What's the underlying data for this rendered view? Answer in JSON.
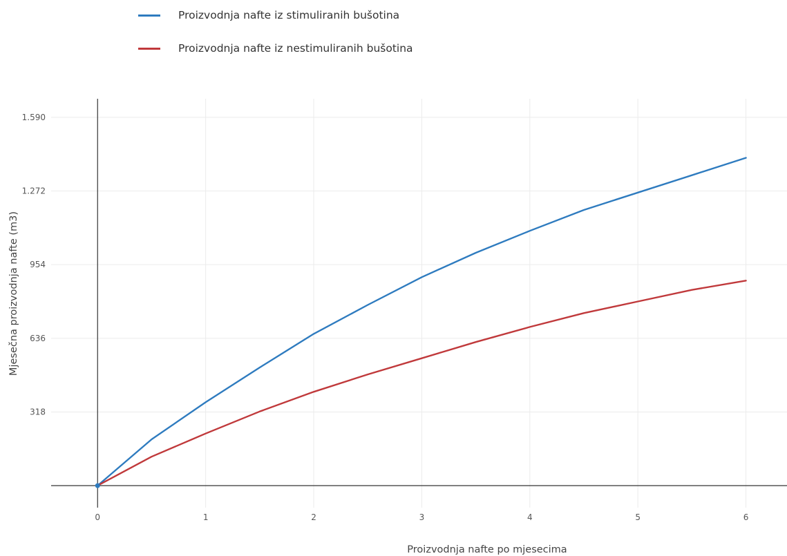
{
  "chart_data": {
    "type": "line",
    "xlabel": "Proizvodnja nafte po mjesecima",
    "ylabel": "Mjesečna proizvodnja  nafte (m3)",
    "xlim": [
      -0.43,
      6.38
    ],
    "ylim": [
      -95,
      1670
    ],
    "x_ticks": [
      0,
      1,
      2,
      3,
      4,
      5,
      6
    ],
    "x_tick_labels": [
      "0",
      "1",
      "2",
      "3",
      "4",
      "5",
      "6"
    ],
    "y_ticks": [
      0,
      318,
      636,
      954,
      1272,
      1590
    ],
    "y_tick_labels": [
      "",
      "318",
      "636",
      "954",
      "1.272",
      "1.590"
    ],
    "grid": true,
    "legend_position": "top-left",
    "series": [
      {
        "name": "Proizvodnja nafte iz stimuliranih bušotina",
        "color": "#2e7bbf",
        "x": [
          0,
          0.5,
          1,
          1.5,
          2,
          2.5,
          3,
          3.5,
          4,
          4.5,
          5,
          5.5,
          6
        ],
        "y": [
          0,
          200,
          360,
          510,
          655,
          780,
          900,
          1005,
          1100,
          1190,
          1265,
          1340,
          1415
        ]
      },
      {
        "name": "Proizvodnja nafte iz nestimuliranih bušotina",
        "color": "#c0393b",
        "x": [
          0,
          0.5,
          1,
          1.5,
          2,
          2.5,
          3,
          3.5,
          4,
          4.5,
          5,
          5.5,
          6
        ],
        "y": [
          0,
          125,
          225,
          320,
          405,
          480,
          550,
          620,
          685,
          745,
          795,
          845,
          885
        ]
      }
    ]
  }
}
